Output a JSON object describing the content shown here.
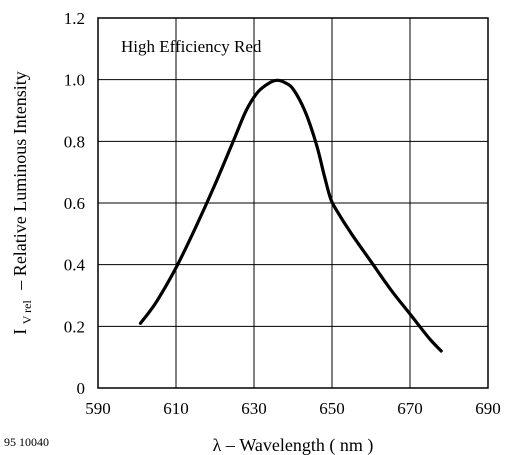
{
  "figure_code": "95 10040",
  "chart_data": {
    "type": "line",
    "annotation": "High Efficiency Red",
    "xlabel": "λ – Wavelength ( nm )",
    "ylabel_symbol": "I",
    "ylabel_subscript": "V rel",
    "ylabel_text": "– Relative Luminous Intensity",
    "xlim": [
      590,
      690
    ],
    "ylim": [
      0,
      1.2
    ],
    "x_ticks": [
      590,
      610,
      630,
      650,
      670,
      690
    ],
    "y_ticks": [
      0,
      0.2,
      0.4,
      0.6,
      0.8,
      1.0,
      1.2
    ],
    "x_tick_labels": [
      "590",
      "610",
      "630",
      "650",
      "670",
      "690"
    ],
    "y_tick_labels": [
      "0",
      "0.2",
      "0.4",
      "0.6",
      "0.8",
      "1.0",
      "1.2"
    ],
    "grid": true,
    "series": [
      {
        "x": [
          600.9,
          605,
          610,
          615,
          620,
          625,
          628,
          631,
          634,
          636,
          638,
          640,
          643,
          646,
          648,
          649.5,
          651,
          655,
          660,
          665,
          670,
          675,
          678
        ],
        "y": [
          0.21,
          0.28,
          0.39,
          0.52,
          0.66,
          0.81,
          0.9,
          0.96,
          0.99,
          0.998,
          0.99,
          0.97,
          0.9,
          0.79,
          0.69,
          0.62,
          0.58,
          0.5,
          0.41,
          0.32,
          0.24,
          0.16,
          0.12
        ],
        "color": "#000000"
      }
    ]
  }
}
